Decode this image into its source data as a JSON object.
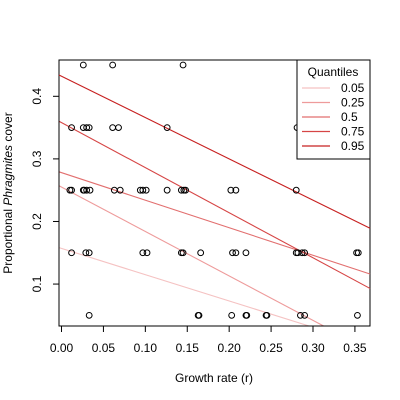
{
  "chart_data": {
    "type": "scatter",
    "xlabel": "Growth rate (r)",
    "ylabel_prefix": "Proportional ",
    "ylabel_italic": "Phragmites",
    "ylabel_suffix": " cover",
    "xlim": [
      -0.003,
      0.368
    ],
    "ylim": [
      0.033,
      0.458
    ],
    "xticks": [
      0.0,
      0.05,
      0.1,
      0.15,
      0.2,
      0.25,
      0.3,
      0.35
    ],
    "xtick_labels": [
      "0.00",
      "0.05",
      "0.10",
      "0.15",
      "0.20",
      "0.25",
      "0.30",
      "0.35"
    ],
    "yticks": [
      0.1,
      0.2,
      0.3,
      0.4
    ],
    "ytick_labels": [
      "0.1",
      "0.2",
      "0.3",
      "0.4"
    ],
    "points": [
      {
        "x": 0.026,
        "y": 0.45
      },
      {
        "x": 0.061,
        "y": 0.45
      },
      {
        "x": 0.145,
        "y": 0.45
      },
      {
        "x": 0.012,
        "y": 0.35
      },
      {
        "x": 0.026,
        "y": 0.35
      },
      {
        "x": 0.03,
        "y": 0.35
      },
      {
        "x": 0.033,
        "y": 0.35
      },
      {
        "x": 0.061,
        "y": 0.35
      },
      {
        "x": 0.068,
        "y": 0.35
      },
      {
        "x": 0.126,
        "y": 0.35
      },
      {
        "x": 0.281,
        "y": 0.35
      },
      {
        "x": 0.01,
        "y": 0.25
      },
      {
        "x": 0.012,
        "y": 0.25
      },
      {
        "x": 0.026,
        "y": 0.25
      },
      {
        "x": 0.027,
        "y": 0.25
      },
      {
        "x": 0.03,
        "y": 0.25
      },
      {
        "x": 0.034,
        "y": 0.25
      },
      {
        "x": 0.063,
        "y": 0.25
      },
      {
        "x": 0.07,
        "y": 0.25
      },
      {
        "x": 0.094,
        "y": 0.25
      },
      {
        "x": 0.097,
        "y": 0.25
      },
      {
        "x": 0.101,
        "y": 0.25
      },
      {
        "x": 0.126,
        "y": 0.25
      },
      {
        "x": 0.143,
        "y": 0.25
      },
      {
        "x": 0.146,
        "y": 0.25
      },
      {
        "x": 0.148,
        "y": 0.25
      },
      {
        "x": 0.202,
        "y": 0.25
      },
      {
        "x": 0.208,
        "y": 0.25
      },
      {
        "x": 0.28,
        "y": 0.25
      },
      {
        "x": 0.012,
        "y": 0.15
      },
      {
        "x": 0.029,
        "y": 0.15
      },
      {
        "x": 0.033,
        "y": 0.15
      },
      {
        "x": 0.097,
        "y": 0.15
      },
      {
        "x": 0.102,
        "y": 0.15
      },
      {
        "x": 0.143,
        "y": 0.15
      },
      {
        "x": 0.145,
        "y": 0.15
      },
      {
        "x": 0.166,
        "y": 0.15
      },
      {
        "x": 0.204,
        "y": 0.15
      },
      {
        "x": 0.208,
        "y": 0.15
      },
      {
        "x": 0.22,
        "y": 0.15
      },
      {
        "x": 0.28,
        "y": 0.15
      },
      {
        "x": 0.282,
        "y": 0.15
      },
      {
        "x": 0.287,
        "y": 0.15
      },
      {
        "x": 0.29,
        "y": 0.15
      },
      {
        "x": 0.352,
        "y": 0.15
      },
      {
        "x": 0.354,
        "y": 0.15
      },
      {
        "x": 0.033,
        "y": 0.05
      },
      {
        "x": 0.163,
        "y": 0.05
      },
      {
        "x": 0.164,
        "y": 0.05
      },
      {
        "x": 0.203,
        "y": 0.05
      },
      {
        "x": 0.22,
        "y": 0.05
      },
      {
        "x": 0.221,
        "y": 0.05
      },
      {
        "x": 0.244,
        "y": 0.05
      },
      {
        "x": 0.245,
        "y": 0.05
      },
      {
        "x": 0.285,
        "y": 0.05
      },
      {
        "x": 0.29,
        "y": 0.05
      },
      {
        "x": 0.353,
        "y": 0.05
      }
    ],
    "quantile_lines": [
      {
        "name": "0.05",
        "color": "#f5c2c2",
        "y0": 0.157,
        "slope": -0.42
      },
      {
        "name": "0.25",
        "color": "#ee9b9b",
        "y0": 0.255,
        "slope": -0.71
      },
      {
        "name": "0.5",
        "color": "#e26f6f",
        "y0": 0.278,
        "slope": -0.44
      },
      {
        "name": "0.75",
        "color": "#d64545",
        "y0": 0.358,
        "slope": -0.72
      },
      {
        "name": "0.95",
        "color": "#c72020",
        "y0": 0.432,
        "slope": -0.66
      }
    ],
    "legend": {
      "title": "Quantiles",
      "position": "top-right",
      "entries": [
        "0.05",
        "0.25",
        "0.5",
        "0.75",
        "0.95"
      ]
    },
    "grid": false
  }
}
